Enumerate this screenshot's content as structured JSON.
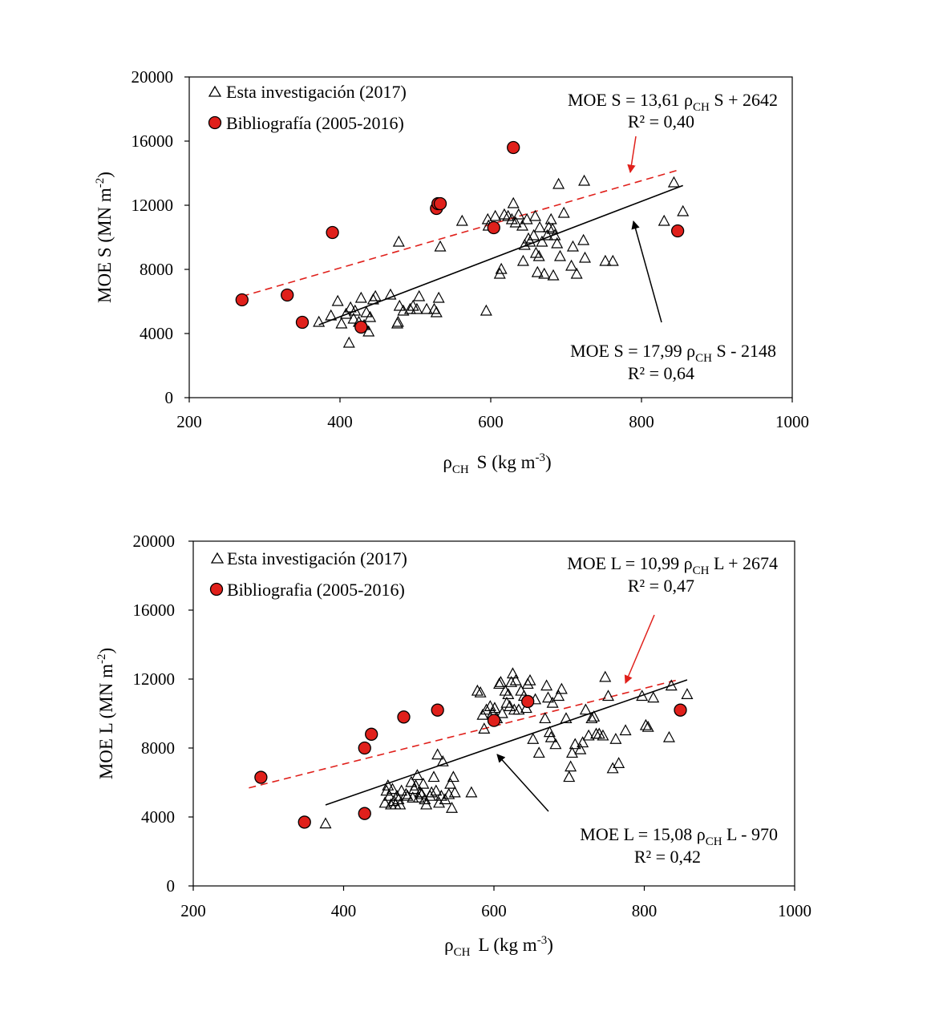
{
  "chart_data": [
    {
      "type": "scatter",
      "xlabel": {
        "rho": "ρ",
        "sub": "CH",
        "suffix": "S (kg m",
        "sup": "-3",
        "close": ")"
      },
      "ylabel": {
        "prefix": "MOE S  (MN m",
        "sup": "-2",
        "close": ")"
      },
      "xlim": [
        200,
        1000
      ],
      "ylim": [
        0,
        20000
      ],
      "xticks": [
        "200",
        "400",
        "600",
        "800",
        "1000"
      ],
      "yticks": [
        "0",
        "4000",
        "8000",
        "12000",
        "16000",
        "20000"
      ],
      "legend": [
        {
          "label": "Esta investigación (2017)",
          "marker": "triangle"
        },
        {
          "label": "Bibliografía (2005-2016)",
          "marker": "circle"
        }
      ],
      "equations": {
        "biblio": {
          "pre": "MOE S = 13,61 ",
          "rho": "ρ",
          "sub": "CH",
          "post": " S + 2642",
          "r2": "R² = 0,40"
        },
        "own": {
          "pre": "MOE S = 17,99 ",
          "rho": "ρ",
          "sub": "CH",
          "post": " S - 2148",
          "r2": "R² = 0,64"
        }
      },
      "series": [
        {
          "name": "Esta investigación (2017)",
          "points": [
            [
              372,
              4700
            ],
            [
              388,
              5100
            ],
            [
              397,
              6000
            ],
            [
              402,
              4600
            ],
            [
              408,
              5200
            ],
            [
              412,
              3400
            ],
            [
              414,
              5600
            ],
            [
              418,
              4900
            ],
            [
              420,
              5400
            ],
            [
              425,
              4700
            ],
            [
              428,
              6200
            ],
            [
              432,
              4500
            ],
            [
              435,
              5300
            ],
            [
              438,
              4100
            ],
            [
              440,
              5000
            ],
            [
              444,
              6100
            ],
            [
              447,
              6300
            ],
            [
              467,
              6400
            ],
            [
              476,
              4600
            ],
            [
              477,
              4700
            ],
            [
              478,
              9700
            ],
            [
              479,
              5700
            ],
            [
              484,
              5400
            ],
            [
              493,
              5500
            ],
            [
              497,
              5700
            ],
            [
              502,
              5500
            ],
            [
              505,
              6300
            ],
            [
              515,
              5500
            ],
            [
              525,
              5500
            ],
            [
              528,
              5300
            ],
            [
              531,
              6200
            ],
            [
              533,
              9400
            ],
            [
              562,
              11000
            ],
            [
              594,
              5400
            ],
            [
              596,
              11100
            ],
            [
              597,
              10700
            ],
            [
              606,
              11300
            ],
            [
              612,
              7700
            ],
            [
              614,
              8000
            ],
            [
              618,
              11400
            ],
            [
              623,
              11300
            ],
            [
              628,
              11100
            ],
            [
              630,
              12100
            ],
            [
              633,
              10900
            ],
            [
              637,
              11400
            ],
            [
              642,
              10700
            ],
            [
              643,
              8500
            ],
            [
              645,
              9500
            ],
            [
              648,
              11100
            ],
            [
              650,
              9900
            ],
            [
              652,
              9700
            ],
            [
              657,
              10100
            ],
            [
              659,
              11300
            ],
            [
              660,
              9000
            ],
            [
              662,
              7800
            ],
            [
              664,
              8800
            ],
            [
              665,
              10600
            ],
            [
              668,
              9700
            ],
            [
              671,
              7700
            ],
            [
              675,
              10100
            ],
            [
              677,
              10600
            ],
            [
              680,
              11100
            ],
            [
              682,
              10500
            ],
            [
              683,
              7600
            ],
            [
              685,
              10100
            ],
            [
              688,
              9600
            ],
            [
              690,
              13300
            ],
            [
              692,
              8800
            ],
            [
              697,
              11500
            ],
            [
              707,
              8200
            ],
            [
              709,
              9400
            ],
            [
              714,
              7700
            ],
            [
              723,
              9800
            ],
            [
              724,
              13500
            ],
            [
              725,
              8700
            ],
            [
              752,
              8500
            ],
            [
              762,
              8500
            ],
            [
              830,
              11000
            ],
            [
              843,
              13400
            ],
            [
              855,
              11600
            ]
          ]
        },
        {
          "name": "Bibliografía (2005-2016)",
          "points": [
            [
              270,
              6100
            ],
            [
              330,
              6400
            ],
            [
              350,
              4700
            ],
            [
              390,
              10300
            ],
            [
              428,
              4400
            ],
            [
              528,
              11800
            ],
            [
              530,
              12100
            ],
            [
              533,
              12100
            ],
            [
              604,
              10600
            ],
            [
              630,
              15600
            ],
            [
              848,
              10400
            ]
          ]
        }
      ],
      "trendlines": [
        {
          "name": "Bibliografía fit",
          "slope": 13.61,
          "intercept": 2642,
          "x_range": [
            270,
            848
          ],
          "style": "dashed",
          "color": "#e0201b"
        },
        {
          "name": "Esta investigación fit",
          "slope": 17.99,
          "intercept": -2148,
          "x_range": [
            372,
            855
          ],
          "style": "solid",
          "color": "#000000"
        }
      ]
    },
    {
      "type": "scatter",
      "xlabel": {
        "rho": "ρ",
        "sub": "CH",
        "suffix": "L (kg m",
        "sup": "-3",
        "close": ")"
      },
      "ylabel": {
        "prefix": "MOE L  (MN m",
        "sup": "-2",
        "close": ")"
      },
      "xlim": [
        200,
        1000
      ],
      "ylim": [
        0,
        20000
      ],
      "xticks": [
        "200",
        "400",
        "600",
        "800",
        "1000"
      ],
      "yticks": [
        "0",
        "4000",
        "8000",
        "12000",
        "16000",
        "20000"
      ],
      "legend": [
        {
          "label": "Esta investigación (2017)",
          "marker": "triangle"
        },
        {
          "label": "Bibliografia (2005-2016)",
          "marker": "circle"
        }
      ],
      "equations": {
        "biblio": {
          "pre": "MOE L = 10,99 ",
          "rho": "ρ",
          "sub": "CH",
          "post": " L + 2674",
          "r2": "R² = 0,47"
        },
        "own": {
          "pre": "MOE L = 15,08 ",
          "rho": "ρ",
          "sub": "CH",
          "post": " L - 970",
          "r2": "R² = 0,42"
        }
      },
      "series": [
        {
          "name": "Esta investigación (2017)",
          "points": [
            [
              376,
              3600
            ],
            [
              455,
              4800
            ],
            [
              457,
              5500
            ],
            [
              459,
              5800
            ],
            [
              461,
              5200
            ],
            [
              463,
              4700
            ],
            [
              465,
              5600
            ],
            [
              467,
              4900
            ],
            [
              469,
              4700
            ],
            [
              471,
              5200
            ],
            [
              473,
              5000
            ],
            [
              475,
              4700
            ],
            [
              477,
              5500
            ],
            [
              483,
              5300
            ],
            [
              485,
              5200
            ],
            [
              490,
              6000
            ],
            [
              492,
              5100
            ],
            [
              494,
              5600
            ],
            [
              496,
              5800
            ],
            [
              498,
              6400
            ],
            [
              500,
              5100
            ],
            [
              502,
              5400
            ],
            [
              504,
              5300
            ],
            [
              506,
              5900
            ],
            [
              508,
              5000
            ],
            [
              510,
              4700
            ],
            [
              515,
              5200
            ],
            [
              517,
              5400
            ],
            [
              520,
              6300
            ],
            [
              523,
              5500
            ],
            [
              525,
              7600
            ],
            [
              527,
              4800
            ],
            [
              530,
              5200
            ],
            [
              532,
              7200
            ],
            [
              535,
              5000
            ],
            [
              540,
              5300
            ],
            [
              542,
              5900
            ],
            [
              544,
              4500
            ],
            [
              546,
              6300
            ],
            [
              548,
              5400
            ],
            [
              570,
              5400
            ],
            [
              578,
              11300
            ],
            [
              582,
              11200
            ],
            [
              585,
              9900
            ],
            [
              587,
              9100
            ],
            [
              590,
              10200
            ],
            [
              595,
              10400
            ],
            [
              598,
              10000
            ],
            [
              601,
              10300
            ],
            [
              604,
              9700
            ],
            [
              607,
              11700
            ],
            [
              609,
              11800
            ],
            [
              611,
              10000
            ],
            [
              615,
              11300
            ],
            [
              617,
              10600
            ],
            [
              619,
              11100
            ],
            [
              621,
              10400
            ],
            [
              623,
              11800
            ],
            [
              625,
              12300
            ],
            [
              627,
              10200
            ],
            [
              629,
              11900
            ],
            [
              633,
              10200
            ],
            [
              636,
              11300
            ],
            [
              640,
              11000
            ],
            [
              643,
              10300
            ],
            [
              645,
              11700
            ],
            [
              648,
              11900
            ],
            [
              652,
              8500
            ],
            [
              655,
              10800
            ],
            [
              660,
              7700
            ],
            [
              668,
              9700
            ],
            [
              670,
              11600
            ],
            [
              672,
              10900
            ],
            [
              674,
              8900
            ],
            [
              676,
              8600
            ],
            [
              678,
              10600
            ],
            [
              682,
              8200
            ],
            [
              686,
              11000
            ],
            [
              690,
              11400
            ],
            [
              696,
              9700
            ],
            [
              700,
              6300
            ],
            [
              702,
              6900
            ],
            [
              704,
              7700
            ],
            [
              708,
              8200
            ],
            [
              715,
              7900
            ],
            [
              718,
              8300
            ],
            [
              722,
              10200
            ],
            [
              726,
              8700
            ],
            [
              730,
              9700
            ],
            [
              733,
              9800
            ],
            [
              736,
              8800
            ],
            [
              740,
              8800
            ],
            [
              745,
              8700
            ],
            [
              748,
              12100
            ],
            [
              752,
              11000
            ],
            [
              758,
              6800
            ],
            [
              762,
              8500
            ],
            [
              766,
              7100
            ],
            [
              775,
              9000
            ],
            [
              797,
              11000
            ],
            [
              802,
              9300
            ],
            [
              805,
              9200
            ],
            [
              812,
              10900
            ],
            [
              833,
              8600
            ],
            [
              836,
              11600
            ],
            [
              857,
              11100
            ]
          ]
        },
        {
          "name": "Bibliografia (2005-2016)",
          "points": [
            [
              290,
              6300
            ],
            [
              348,
              3700
            ],
            [
              428,
              8000
            ],
            [
              428,
              4200
            ],
            [
              437,
              8800
            ],
            [
              480,
              9800
            ],
            [
              525,
              10200
            ],
            [
              600,
              9600
            ],
            [
              645,
              10700
            ],
            [
              848,
              10200
            ]
          ]
        }
      ],
      "trendlines": [
        {
          "name": "Bibliografia fit",
          "slope": 10.99,
          "intercept": 2674,
          "x_range": [
            274,
            848
          ],
          "style": "dashed",
          "color": "#e0201b"
        },
        {
          "name": "Esta investigación fit",
          "slope": 15.08,
          "intercept": -970,
          "x_range": [
            376,
            857
          ],
          "style": "solid",
          "color": "#000000"
        }
      ]
    }
  ]
}
